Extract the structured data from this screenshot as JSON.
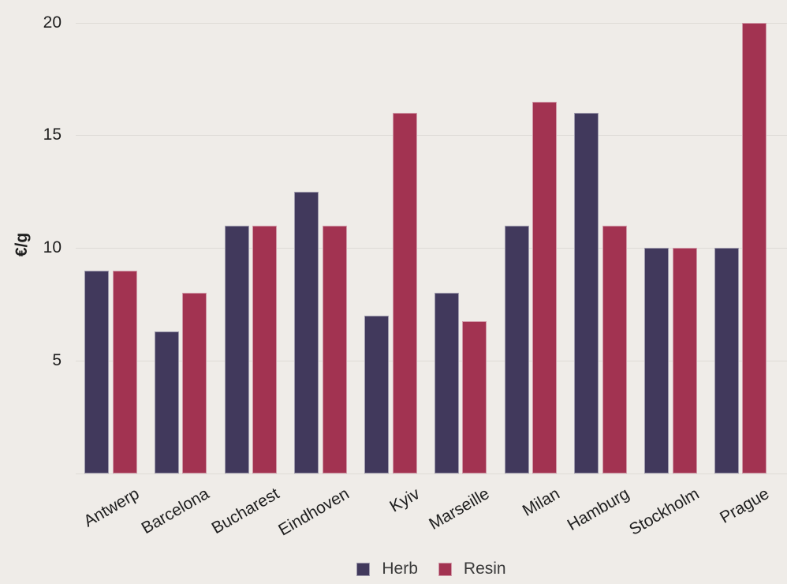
{
  "chart_data": {
    "type": "bar",
    "title": "",
    "ylabel": "€/g",
    "xlabel": "",
    "categories": [
      "Antwerp",
      "Barcelona",
      "Bucharest",
      "Eindhoven",
      "Kyiv",
      "Marseille",
      "Milan",
      "Hamburg",
      "Stockholm",
      "Prague"
    ],
    "series": [
      {
        "name": "Herb",
        "color": "#41395C",
        "values": [
          9,
          6.3,
          11,
          12.5,
          7,
          8,
          11,
          16,
          10,
          10
        ]
      },
      {
        "name": "Resin",
        "color": "#A23351",
        "values": [
          9,
          8,
          11,
          11,
          16,
          6.75,
          16.5,
          11,
          10,
          20
        ]
      }
    ],
    "ylim": [
      0,
      20
    ],
    "yticks": [
      5,
      10,
      15,
      20
    ],
    "grid": true,
    "legend_position": "bottom-center",
    "background_color": "#EFECE8",
    "gridline_color": "#DEDBD6",
    "text_color": "#1e1e1e"
  }
}
